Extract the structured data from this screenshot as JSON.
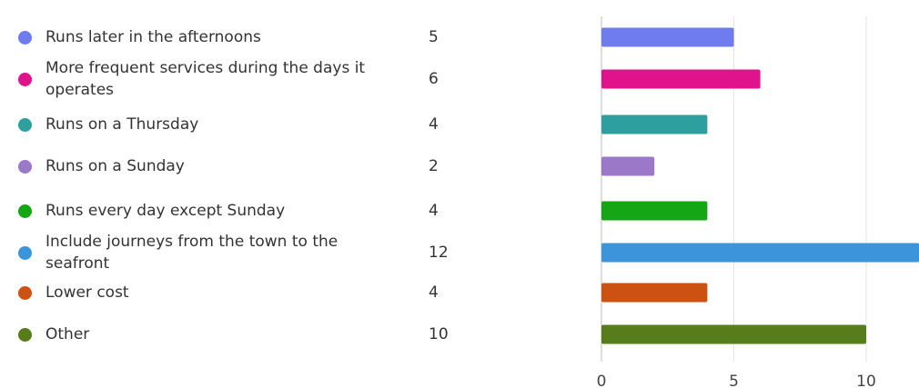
{
  "chart_data": {
    "type": "bar",
    "orientation": "horizontal",
    "categories": [
      "Runs later in the afternoons",
      "More frequent services during the days it operates",
      "Runs on a Thursday",
      "Runs on a Sunday",
      "Runs every day except Sunday",
      "Include journeys from the town to the seafront",
      "Lower cost",
      "Other"
    ],
    "values": [
      5,
      6,
      4,
      2,
      4,
      12,
      4,
      10
    ],
    "colors": [
      "#6e7cf0",
      "#e0138c",
      "#2d9f9f",
      "#9b79c8",
      "#14a614",
      "#3c95db",
      "#cc5212",
      "#577c1c"
    ],
    "xlim": [
      0,
      12
    ],
    "xticks": [
      "0",
      "5",
      "10"
    ],
    "grid": true,
    "legend": "left"
  }
}
